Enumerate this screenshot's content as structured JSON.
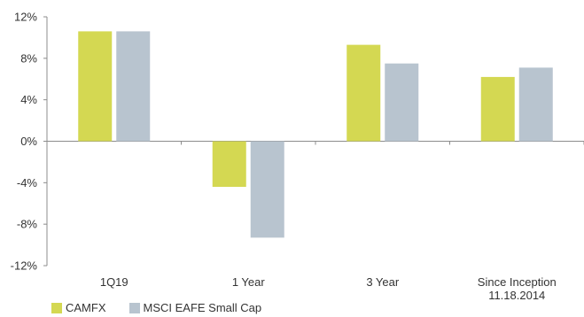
{
  "chart_data": {
    "type": "bar",
    "categories": [
      [
        "1Q19"
      ],
      [
        "1 Year"
      ],
      [
        "3 Year"
      ],
      [
        "Since Inception",
        "11.18.2014"
      ]
    ],
    "series": [
      {
        "name": "CAMFX",
        "color": "#d4d852",
        "values": [
          10.6,
          -4.4,
          9.3,
          6.2
        ]
      },
      {
        "name": "MSCI EAFE Small Cap",
        "color": "#b8c4cf",
        "values": [
          10.6,
          -9.3,
          7.5,
          7.1
        ]
      }
    ],
    "y_ticks": [
      {
        "value": 12,
        "label": "12%"
      },
      {
        "value": 8,
        "label": "8%"
      },
      {
        "value": 4,
        "label": "4%"
      },
      {
        "value": 0,
        "label": "0%"
      },
      {
        "value": -4,
        "label": "-4%"
      },
      {
        "value": -8,
        "label": "-8%"
      },
      {
        "value": -12,
        "label": "-12%"
      }
    ],
    "ylim": [
      -12,
      12
    ],
    "grid": false,
    "legend_position": "bottom-left",
    "axis_color": "#8c8c8c"
  },
  "legend": {
    "items": [
      {
        "label": "CAMFX",
        "color": "#d4d852"
      },
      {
        "label": "MSCI EAFE Small Cap",
        "color": "#b8c4cf"
      }
    ]
  }
}
